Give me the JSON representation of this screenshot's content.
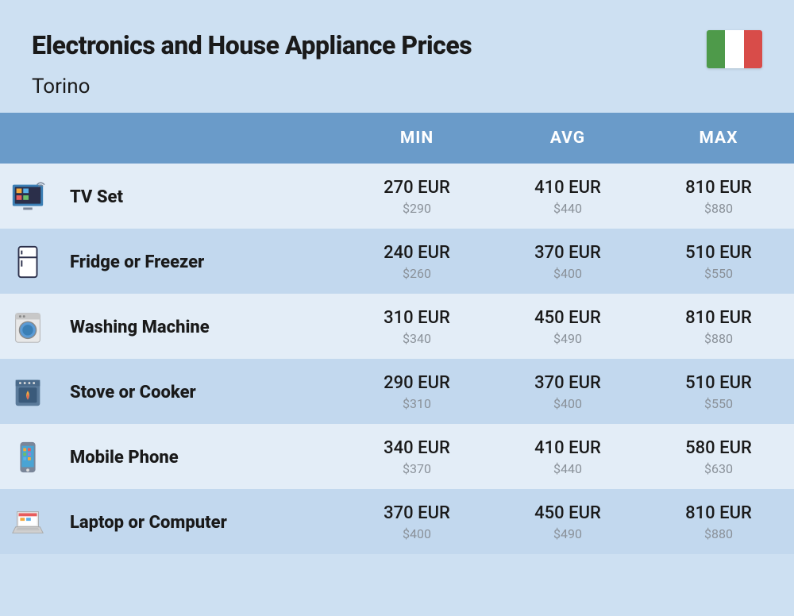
{
  "page": {
    "title": "Electronics and House Appliance Prices",
    "city": "Torino",
    "flag_colors": [
      "#4e9a4a",
      "#ffffff",
      "#d84c49"
    ],
    "background_color": "#cde0f2",
    "header_bg": "#6a9bc9",
    "row_odd_bg": "#e3edf7",
    "row_even_bg": "#c2d8ee",
    "primary_text_color": "#1a1a1a",
    "secondary_text_color": "#8a9199",
    "title_fontsize": 32,
    "subtitle_fontsize": 26,
    "header_fontsize": 21,
    "name_fontsize": 22,
    "primary_fontsize": 22,
    "secondary_fontsize": 16
  },
  "columns": {
    "min": "MIN",
    "avg": "AVG",
    "max": "MAX"
  },
  "items": [
    {
      "icon": "tv",
      "name": "TV Set",
      "min_eur": "270 EUR",
      "min_usd": "$290",
      "avg_eur": "410 EUR",
      "avg_usd": "$440",
      "max_eur": "810 EUR",
      "max_usd": "$880"
    },
    {
      "icon": "fridge",
      "name": "Fridge or Freezer",
      "min_eur": "240 EUR",
      "min_usd": "$260",
      "avg_eur": "370 EUR",
      "avg_usd": "$400",
      "max_eur": "510 EUR",
      "max_usd": "$550"
    },
    {
      "icon": "washer",
      "name": "Washing Machine",
      "min_eur": "310 EUR",
      "min_usd": "$340",
      "avg_eur": "450 EUR",
      "avg_usd": "$490",
      "max_eur": "810 EUR",
      "max_usd": "$880"
    },
    {
      "icon": "stove",
      "name": "Stove or Cooker",
      "min_eur": "290 EUR",
      "min_usd": "$310",
      "avg_eur": "370 EUR",
      "avg_usd": "$400",
      "max_eur": "510 EUR",
      "max_usd": "$550"
    },
    {
      "icon": "phone",
      "name": "Mobile Phone",
      "min_eur": "340 EUR",
      "min_usd": "$370",
      "avg_eur": "410 EUR",
      "avg_usd": "$440",
      "max_eur": "580 EUR",
      "max_usd": "$630"
    },
    {
      "icon": "laptop",
      "name": "Laptop or Computer",
      "min_eur": "370 EUR",
      "min_usd": "$400",
      "avg_eur": "450 EUR",
      "avg_usd": "$490",
      "max_eur": "810 EUR",
      "max_usd": "$880"
    }
  ]
}
